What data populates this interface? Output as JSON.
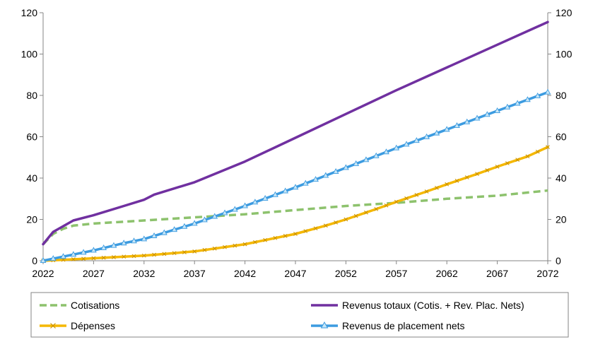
{
  "chart_data": {
    "type": "line",
    "title": "",
    "xlabel": "",
    "ylabel": "",
    "xlim": [
      2022,
      2072
    ],
    "ylim": [
      0,
      120
    ],
    "x_ticks": [
      "2022",
      "2027",
      "2032",
      "2037",
      "2042",
      "2047",
      "2052",
      "2057",
      "2062",
      "2067",
      "2072"
    ],
    "y_ticks": [
      "0",
      "20",
      "40",
      "60",
      "80",
      "100",
      "120"
    ],
    "y2_ticks": [
      "0",
      "20",
      "40",
      "60",
      "80",
      "100",
      "120"
    ],
    "grid": false,
    "legend_position": "bottom",
    "series": [
      {
        "name": "Cotisations",
        "color": "#8DC26D",
        "style": "dashed",
        "x": [
          2022,
          2023,
          2024,
          2025,
          2027,
          2032,
          2037,
          2042,
          2047,
          2052,
          2057,
          2062,
          2067,
          2072
        ],
        "values": [
          8,
          13,
          15.5,
          17,
          18,
          19.5,
          21,
          22.5,
          24.5,
          26.5,
          28,
          30,
          31.5,
          34
        ]
      },
      {
        "name": "Revenus totaux (Cotis. + Rev. Plac. Nets)",
        "color": "#7030A0",
        "style": "solid",
        "x": [
          2022,
          2023,
          2025,
          2027,
          2030,
          2032,
          2033,
          2037,
          2042,
          2047,
          2052,
          2057,
          2062,
          2067,
          2072
        ],
        "values": [
          8,
          14,
          19.5,
          22,
          26.5,
          29.5,
          32,
          38,
          48,
          59.5,
          71,
          82.5,
          93.5,
          104.5,
          115.5
        ]
      },
      {
        "name": "Dépenses",
        "color": "#F5B800",
        "style": "solid",
        "marker": "x",
        "x": [
          2022,
          2025,
          2027,
          2032,
          2037,
          2042,
          2047,
          2050,
          2052,
          2055,
          2057,
          2060,
          2062,
          2065,
          2067,
          2070,
          2072
        ],
        "values": [
          0,
          0.7,
          1.2,
          2.5,
          4.5,
          8,
          13,
          17,
          20,
          25,
          28.5,
          33.5,
          37,
          42,
          45.5,
          50.5,
          55
        ]
      },
      {
        "name": "Revenus de placement nets",
        "color": "#3C9BE0",
        "style": "solid",
        "marker": "triangle",
        "x": [
          2022,
          2025,
          2027,
          2030,
          2032,
          2035,
          2037,
          2042,
          2047,
          2052,
          2057,
          2062,
          2067,
          2072
        ],
        "values": [
          0,
          3,
          5,
          8.5,
          10.5,
          15,
          18,
          26.5,
          35.5,
          45,
          54.5,
          63.5,
          72.5,
          81.5
        ]
      }
    ]
  }
}
